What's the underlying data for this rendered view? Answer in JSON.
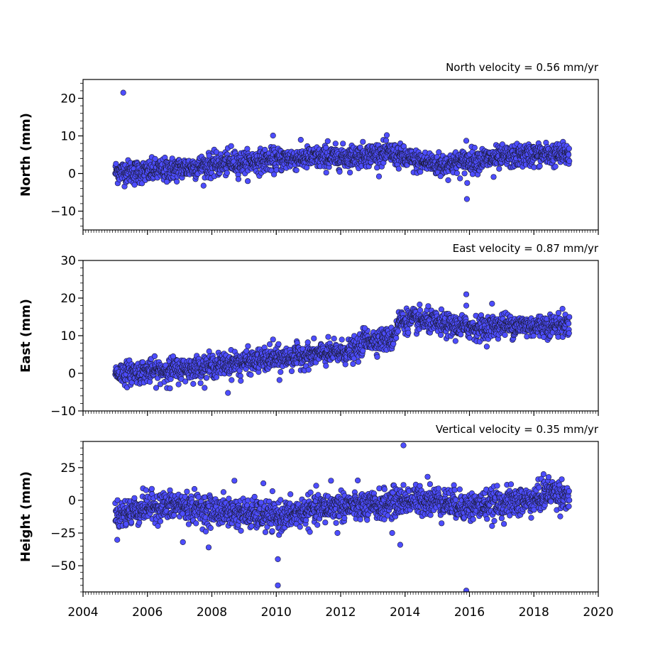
{
  "chart_data": [
    {
      "type": "scatter",
      "title": "North velocity = 0.56 mm/yr",
      "ylabel": "North (mm)",
      "xlabel": "",
      "xlim": [
        2004,
        2020
      ],
      "ylim": [
        -15,
        25
      ],
      "yticks": [
        -10,
        0,
        10,
        20
      ],
      "ytick_labels": [
        "−10",
        "0",
        "10",
        "20"
      ],
      "grid": false,
      "marker_color": "#4d4dff",
      "marker_edge": "#1a1a33",
      "baseline": [
        [
          2005.0,
          0.5
        ],
        [
          2006.0,
          0.5
        ],
        [
          2007.5,
          1.8
        ],
        [
          2009.0,
          3.0
        ],
        [
          2010.5,
          4.0
        ],
        [
          2012.0,
          4.3
        ],
        [
          2013.5,
          5.5
        ],
        [
          2014.2,
          3.5
        ],
        [
          2015.2,
          2.3
        ],
        [
          2016.0,
          3.5
        ],
        [
          2017.0,
          4.2
        ],
        [
          2018.0,
          5.0
        ],
        [
          2019.1,
          5.0
        ]
      ],
      "scatter": 1.5,
      "range": [
        2005.0,
        2019.1
      ],
      "outliers": [
        [
          2005.25,
          21.5
        ],
        [
          2009.9,
          10.1
        ],
        [
          2008.6,
          7.3
        ],
        [
          2011.6,
          8.6
        ],
        [
          2015.9,
          8.7
        ],
        [
          2015.93,
          -2.5
        ],
        [
          2015.92,
          -6.8
        ],
        [
          2015.1,
          -0.7
        ],
        [
          2016.75,
          -0.9
        ],
        [
          2005.6,
          -3.0
        ],
        [
          2006.6,
          -2.2
        ]
      ]
    },
    {
      "type": "scatter",
      "title": "East velocity = 0.87 mm/yr",
      "ylabel": "East (mm)",
      "xlabel": "",
      "xlim": [
        2004,
        2020
      ],
      "ylim": [
        -10,
        30
      ],
      "yticks": [
        -10,
        0,
        10,
        20,
        30
      ],
      "ytick_labels": [
        "−10",
        "0",
        "10",
        "20",
        "30"
      ],
      "grid": false,
      "marker_color": "#4d4dff",
      "marker_edge": "#1a1a33",
      "baseline": [
        [
          2005.0,
          0.0
        ],
        [
          2006.0,
          0.5
        ],
        [
          2007.0,
          1.0
        ],
        [
          2008.0,
          2.0
        ],
        [
          2009.0,
          3.0
        ],
        [
          2010.0,
          3.8
        ],
        [
          2011.0,
          4.8
        ],
        [
          2012.0,
          5.5
        ],
        [
          2012.6,
          6.5
        ],
        [
          2012.7,
          8.8
        ],
        [
          2013.6,
          9.0
        ],
        [
          2013.75,
          12.0
        ],
        [
          2013.8,
          14.0
        ],
        [
          2014.5,
          14.0
        ],
        [
          2015.5,
          12.5
        ],
        [
          2016.5,
          12.0
        ],
        [
          2017.0,
          13.0
        ],
        [
          2018.0,
          12.5
        ],
        [
          2019.1,
          13.0
        ]
      ],
      "scatter": 1.5,
      "range": [
        2005.0,
        2019.1
      ],
      "outliers": [
        [
          2009.9,
          9.0
        ],
        [
          2010.1,
          -1.8
        ],
        [
          2008.5,
          -5.2
        ],
        [
          2008.9,
          -2.0
        ],
        [
          2015.9,
          21.0
        ],
        [
          2015.9,
          18.0
        ],
        [
          2016.7,
          18.5
        ],
        [
          2012.75,
          12.0
        ],
        [
          2006.7,
          -4.0
        ],
        [
          2006.8,
          4.5
        ]
      ]
    },
    {
      "type": "scatter",
      "title": "Vertical velocity = 0.35 mm/yr",
      "ylabel": "Height (mm)",
      "xlabel": "",
      "xlim": [
        2004,
        2020
      ],
      "ylim": [
        -70,
        45
      ],
      "yticks": [
        -50,
        -25,
        0,
        25
      ],
      "ytick_labels": [
        "−50",
        "−25",
        "0",
        "25"
      ],
      "xticks": [
        2004,
        2006,
        2008,
        2010,
        2012,
        2014,
        2016,
        2018,
        2020
      ],
      "xtick_labels": [
        "2004",
        "2006",
        "2008",
        "2010",
        "2012",
        "2014",
        "2016",
        "2018",
        "2020"
      ],
      "grid": false,
      "marker_color": "#4d4dff",
      "marker_edge": "#1a1a33",
      "baseline": [
        [
          2005.0,
          -12.0
        ],
        [
          2006.0,
          -5.0
        ],
        [
          2007.0,
          -4.0
        ],
        [
          2008.0,
          -8.0
        ],
        [
          2009.0,
          -10.0
        ],
        [
          2010.0,
          -13.0
        ],
        [
          2011.0,
          -8.0
        ],
        [
          2012.0,
          -4.0
        ],
        [
          2013.0,
          -5.0
        ],
        [
          2014.0,
          0.0
        ],
        [
          2015.0,
          0.0
        ],
        [
          2016.0,
          -5.0
        ],
        [
          2017.0,
          -2.0
        ],
        [
          2018.0,
          0.0
        ],
        [
          2018.5,
          7.0
        ],
        [
          2019.1,
          3.0
        ]
      ],
      "scatter": 5.5,
      "range": [
        2005.0,
        2019.1
      ],
      "outliers": [
        [
          2013.95,
          42.0
        ],
        [
          2010.05,
          -65.0
        ],
        [
          2010.05,
          -45.0
        ],
        [
          2015.9,
          -69.0
        ],
        [
          2007.9,
          -36.0
        ],
        [
          2007.1,
          -32.0
        ],
        [
          2013.6,
          -25.0
        ],
        [
          2013.85,
          -34.0
        ],
        [
          2011.9,
          -25.0
        ],
        [
          2011.7,
          15.0
        ],
        [
          2008.7,
          15.0
        ],
        [
          2018.3,
          20.0
        ],
        [
          2009.6,
          13.0
        ],
        [
          2014.7,
          18.0
        ]
      ]
    }
  ]
}
